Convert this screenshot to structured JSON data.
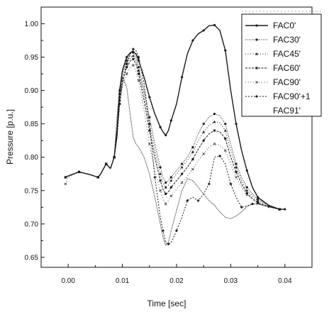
{
  "chart_data": {
    "type": "line",
    "title": "",
    "xlabel": "Time [sec]",
    "ylabel": "Pressure [p.u.]",
    "xlim": [
      -0.005,
      0.045
    ],
    "ylim": [
      0.635,
      1.025
    ],
    "x_ticks": [
      0.0,
      0.01,
      0.02,
      0.03,
      0.04
    ],
    "x_tick_labels": [
      "0.00",
      "0.01",
      "0.02",
      "0.03",
      "0.04"
    ],
    "y_ticks": [
      0.65,
      0.7,
      0.75,
      0.8,
      0.85,
      0.9,
      0.95,
      1.0
    ],
    "y_tick_labels": [
      "0.65",
      "0.70",
      "0.75",
      "0.80",
      "0.85",
      "0.90",
      "0.95",
      "1.00"
    ],
    "grid": false,
    "legend_position": "top-right",
    "series": [
      {
        "name": "FAC0'",
        "color": "#1a1a1a",
        "x": [
          -0.0005,
          0.0,
          0.002,
          0.004,
          0.0055,
          0.006,
          0.007,
          0.0078,
          0.0085,
          0.009,
          0.0095,
          0.01,
          0.0108,
          0.0115,
          0.012,
          0.0125,
          0.013,
          0.014,
          0.015,
          0.016,
          0.017,
          0.0175,
          0.018,
          0.0185,
          0.019,
          0.02,
          0.021,
          0.022,
          0.023,
          0.024,
          0.025,
          0.026,
          0.027,
          0.028,
          0.029,
          0.03,
          0.031,
          0.032,
          0.033,
          0.034,
          0.035,
          0.037,
          0.039,
          0.04
        ],
        "y": [
          0.77,
          0.772,
          0.778,
          0.774,
          0.77,
          0.775,
          0.79,
          0.783,
          0.8,
          0.84,
          0.9,
          0.93,
          0.95,
          0.957,
          0.958,
          0.955,
          0.945,
          0.92,
          0.89,
          0.865,
          0.845,
          0.838,
          0.833,
          0.84,
          0.855,
          0.88,
          0.92,
          0.955,
          0.975,
          0.985,
          0.99,
          0.997,
          0.998,
          0.99,
          0.96,
          0.9,
          0.85,
          0.81,
          0.78,
          0.755,
          0.74,
          0.728,
          0.722,
          0.722
        ]
      },
      {
        "name": "FAC30'",
        "color": "#1a1a1a",
        "x": [
          -0.0005,
          0.0,
          0.002,
          0.004,
          0.0055,
          0.006,
          0.007,
          0.0078,
          0.0085,
          0.009,
          0.0095,
          0.01,
          0.0108,
          0.0115,
          0.012,
          0.0125,
          0.013,
          0.014,
          0.015,
          0.016,
          0.017,
          0.0175,
          0.018,
          0.0185,
          0.019,
          0.02,
          0.021,
          0.022,
          0.023,
          0.024,
          0.025,
          0.026,
          0.027,
          0.028,
          0.029,
          0.03,
          0.031,
          0.032,
          0.033,
          0.034,
          0.035,
          0.037,
          0.039,
          0.04
        ],
        "y": [
          0.77,
          0.772,
          0.778,
          0.774,
          0.77,
          0.775,
          0.79,
          0.783,
          0.8,
          0.835,
          0.895,
          0.925,
          0.945,
          0.955,
          0.957,
          0.95,
          0.935,
          0.9,
          0.86,
          0.82,
          0.785,
          0.77,
          0.762,
          0.765,
          0.77,
          0.78,
          0.79,
          0.8,
          0.815,
          0.835,
          0.85,
          0.86,
          0.865,
          0.862,
          0.85,
          0.82,
          0.79,
          0.77,
          0.755,
          0.745,
          0.737,
          0.728,
          0.722,
          0.722
        ]
      },
      {
        "name": "FAC45'",
        "color": "#1a1a1a",
        "x": [
          -0.0005,
          0.0,
          0.002,
          0.004,
          0.0055,
          0.006,
          0.007,
          0.0078,
          0.0085,
          0.009,
          0.0095,
          0.01,
          0.0108,
          0.0115,
          0.012,
          0.0125,
          0.013,
          0.014,
          0.015,
          0.016,
          0.017,
          0.0175,
          0.018,
          0.0185,
          0.019,
          0.02,
          0.021,
          0.022,
          0.023,
          0.024,
          0.025,
          0.026,
          0.027,
          0.028,
          0.029,
          0.03,
          0.031,
          0.032,
          0.033,
          0.034,
          0.035,
          0.037,
          0.039,
          0.04
        ],
        "y": [
          0.77,
          0.772,
          0.778,
          0.774,
          0.77,
          0.775,
          0.79,
          0.783,
          0.8,
          0.835,
          0.89,
          0.92,
          0.94,
          0.95,
          0.952,
          0.945,
          0.93,
          0.895,
          0.85,
          0.81,
          0.775,
          0.762,
          0.755,
          0.758,
          0.765,
          0.775,
          0.785,
          0.795,
          0.808,
          0.825,
          0.838,
          0.848,
          0.853,
          0.852,
          0.84,
          0.81,
          0.785,
          0.765,
          0.75,
          0.742,
          0.735,
          0.727,
          0.722,
          0.722
        ]
      },
      {
        "name": "FAC60'",
        "color": "#1a1a1a",
        "x": [
          -0.0005,
          0.0,
          0.002,
          0.004,
          0.0055,
          0.006,
          0.007,
          0.0078,
          0.0085,
          0.009,
          0.0095,
          0.01,
          0.0108,
          0.0115,
          0.012,
          0.0125,
          0.013,
          0.014,
          0.015,
          0.016,
          0.017,
          0.0175,
          0.018,
          0.0185,
          0.019,
          0.02,
          0.021,
          0.022,
          0.023,
          0.024,
          0.025,
          0.026,
          0.027,
          0.028,
          0.029,
          0.03,
          0.031,
          0.032,
          0.033,
          0.034,
          0.035,
          0.037,
          0.039,
          0.04
        ],
        "y": [
          0.77,
          0.772,
          0.778,
          0.774,
          0.77,
          0.775,
          0.79,
          0.783,
          0.8,
          0.83,
          0.885,
          0.915,
          0.935,
          0.945,
          0.947,
          0.94,
          0.925,
          0.885,
          0.84,
          0.8,
          0.765,
          0.752,
          0.745,
          0.748,
          0.755,
          0.765,
          0.775,
          0.785,
          0.797,
          0.812,
          0.825,
          0.835,
          0.84,
          0.838,
          0.828,
          0.8,
          0.778,
          0.76,
          0.746,
          0.738,
          0.732,
          0.726,
          0.722,
          0.722
        ]
      },
      {
        "name": "FAC90'",
        "color": "#1a1a1a",
        "x": [
          -0.0005,
          0.0,
          0.002,
          0.004,
          0.0055,
          0.006,
          0.007,
          0.0078,
          0.0085,
          0.009,
          0.0095,
          0.01,
          0.0108,
          0.0115,
          0.012,
          0.0125,
          0.013,
          0.014,
          0.015,
          0.016,
          0.017,
          0.0175,
          0.018,
          0.0185,
          0.019,
          0.02,
          0.021,
          0.022,
          0.023,
          0.024,
          0.025,
          0.026,
          0.027,
          0.028,
          0.029,
          0.03,
          0.031,
          0.032,
          0.033,
          0.034,
          0.035,
          0.037,
          0.039,
          0.04
        ],
        "y": [
          0.76,
          0.77,
          0.778,
          0.774,
          0.77,
          0.775,
          0.79,
          0.783,
          0.8,
          0.83,
          0.88,
          0.905,
          0.925,
          0.935,
          0.938,
          0.93,
          0.915,
          0.87,
          0.82,
          0.78,
          0.75,
          0.738,
          0.73,
          0.735,
          0.742,
          0.752,
          0.762,
          0.772,
          0.782,
          0.795,
          0.805,
          0.815,
          0.82,
          0.818,
          0.81,
          0.79,
          0.77,
          0.755,
          0.744,
          0.737,
          0.731,
          0.725,
          0.722,
          0.722
        ]
      },
      {
        "name": "FAC90'+1",
        "color": "#1a1a1a",
        "x": [
          -0.0005,
          0.0,
          0.002,
          0.004,
          0.0055,
          0.006,
          0.007,
          0.0078,
          0.0085,
          0.009,
          0.0095,
          0.01,
          0.0108,
          0.0115,
          0.012,
          0.0125,
          0.013,
          0.014,
          0.015,
          0.0155,
          0.016,
          0.017,
          0.0175,
          0.018,
          0.0185,
          0.019,
          0.02,
          0.021,
          0.022,
          0.023,
          0.024,
          0.025,
          0.026,
          0.027,
          0.028,
          0.029,
          0.03,
          0.031,
          0.032,
          0.033,
          0.034,
          0.035,
          0.037,
          0.039,
          0.04
        ],
        "y": [
          0.77,
          0.772,
          0.778,
          0.774,
          0.77,
          0.775,
          0.79,
          0.783,
          0.8,
          0.83,
          0.88,
          0.91,
          0.94,
          0.955,
          0.962,
          0.96,
          0.95,
          0.91,
          0.85,
          0.81,
          0.77,
          0.71,
          0.69,
          0.672,
          0.67,
          0.672,
          0.69,
          0.71,
          0.735,
          0.74,
          0.735,
          0.745,
          0.76,
          0.8,
          0.802,
          0.79,
          0.76,
          0.74,
          0.725,
          0.727,
          0.73,
          0.73,
          0.726,
          0.722,
          0.722
        ]
      },
      {
        "name": "FAC91'",
        "color": "#1a1a1a",
        "x": [
          -0.0005,
          0.0,
          0.002,
          0.004,
          0.0055,
          0.006,
          0.007,
          0.0078,
          0.0085,
          0.009,
          0.0095,
          0.01,
          0.0108,
          0.0115,
          0.012,
          0.0125,
          0.013,
          0.014,
          0.015,
          0.016,
          0.017,
          0.0175,
          0.018,
          0.0185,
          0.019,
          0.02,
          0.021,
          0.022,
          0.023,
          0.024,
          0.025,
          0.026,
          0.027,
          0.028,
          0.029,
          0.03,
          0.031,
          0.032,
          0.033,
          0.034,
          0.035,
          0.037,
          0.039,
          0.04
        ],
        "y": [
          0.77,
          0.772,
          0.778,
          0.774,
          0.77,
          0.775,
          0.79,
          0.783,
          0.8,
          0.86,
          0.905,
          0.92,
          0.905,
          0.86,
          0.83,
          0.82,
          0.815,
          0.8,
          0.775,
          0.74,
          0.7,
          0.68,
          0.668,
          0.672,
          0.69,
          0.72,
          0.75,
          0.768,
          0.765,
          0.755,
          0.745,
          0.735,
          0.728,
          0.718,
          0.71,
          0.708,
          0.712,
          0.718,
          0.726,
          0.73,
          0.73,
          0.726,
          0.722,
          0.722
        ]
      }
    ]
  }
}
